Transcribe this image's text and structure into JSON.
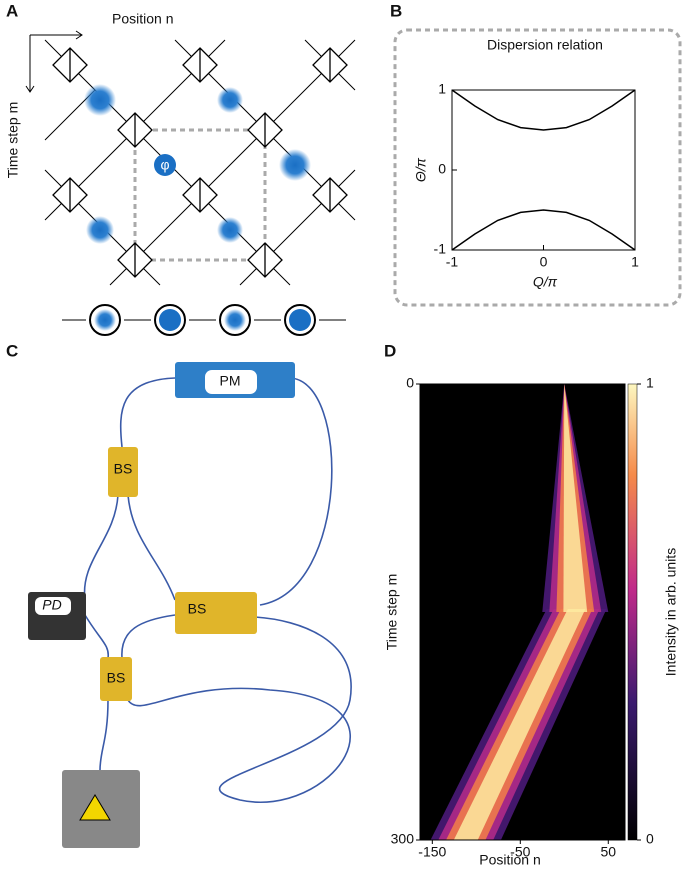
{
  "panels": [
    "A",
    "B",
    "C",
    "D"
  ],
  "panel_a": {
    "x_label": "Position n",
    "y_label": "Time step m",
    "phase": "φ"
  },
  "panel_c": {
    "labels": [
      "PM",
      "BS",
      "PD",
      "BS",
      "BS"
    ]
  },
  "chart_data": [
    {
      "type": "line",
      "title": "Dispersion relation",
      "x_label": "Q/π",
      "y_label": "Θ/π",
      "x": [
        -1,
        -0.75,
        -0.5,
        -0.25,
        0,
        0.25,
        0.5,
        0.75,
        1
      ],
      "series": [
        {
          "color": "#000000",
          "values": [
            1,
            0.8,
            0.63,
            0.53,
            0.5,
            0.53,
            0.63,
            0.8,
            1
          ]
        },
        {
          "color": "#000000",
          "values": [
            -1,
            -0.8,
            -0.63,
            -0.53,
            -0.5,
            -0.53,
            -0.63,
            -0.8,
            -1
          ]
        }
      ],
      "xlim": [
        -1,
        1
      ],
      "ylim": [
        -1,
        1
      ],
      "xticks": [
        -1,
        0,
        1
      ],
      "yticks": [
        -1,
        0,
        1
      ]
    },
    {
      "type": "heatmap",
      "x_label": "Position n",
      "y_label": "Time step m",
      "colorbar_label": "Intensity in arb. units",
      "xlim": [
        -164,
        69
      ],
      "ylim": [
        0,
        300
      ],
      "xticks": [
        -150,
        -50,
        50
      ],
      "yticks": [
        0,
        300
      ],
      "clim": [
        0,
        1
      ],
      "cticks": [
        0,
        1
      ]
    }
  ]
}
